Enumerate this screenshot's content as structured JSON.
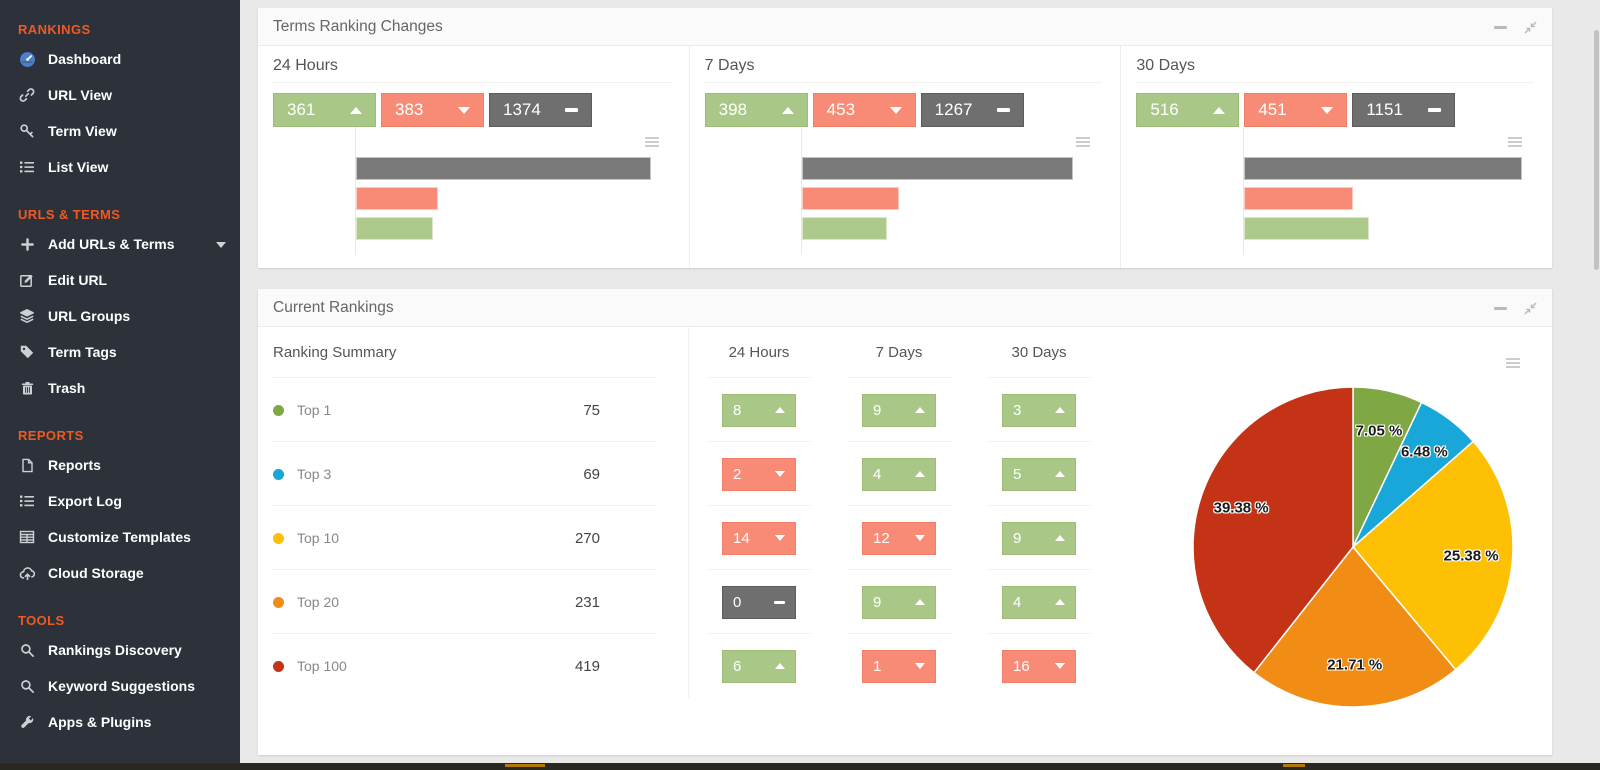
{
  "sidebar": {
    "sections": [
      {
        "label": "RANKINGS",
        "items": [
          {
            "icon": "dashboard-icon",
            "label": "Dashboard"
          },
          {
            "icon": "link-icon",
            "label": "URL View"
          },
          {
            "icon": "key-icon",
            "label": "Term View"
          },
          {
            "icon": "list-icon",
            "label": "List View"
          }
        ]
      },
      {
        "label": "URLS & TERMS",
        "items": [
          {
            "icon": "plus-icon",
            "label": "Add URLs & Terms",
            "has_caret": true
          },
          {
            "icon": "edit-icon",
            "label": "Edit URL"
          },
          {
            "icon": "layers-icon",
            "label": "URL Groups"
          },
          {
            "icon": "tag-icon",
            "label": "Term Tags"
          },
          {
            "icon": "trash-icon",
            "label": "Trash"
          }
        ]
      },
      {
        "label": "REPORTS",
        "items": [
          {
            "icon": "file-icon",
            "label": "Reports"
          },
          {
            "icon": "list-icon",
            "label": "Export Log"
          },
          {
            "icon": "table-icon",
            "label": "Customize Templates"
          },
          {
            "icon": "cloud-upload-icon",
            "label": "Cloud Storage"
          }
        ]
      },
      {
        "label": "TOOLS",
        "items": [
          {
            "icon": "search-icon",
            "label": "Rankings Discovery"
          },
          {
            "icon": "search-icon",
            "label": "Keyword Suggestions"
          },
          {
            "icon": "wrench-icon",
            "label": "Apps & Plugins"
          }
        ]
      }
    ]
  },
  "panels": {
    "terms_ranking_changes": {
      "title": "Terms Ranking Changes",
      "columns": [
        {
          "label": "24 Hours",
          "up": "361",
          "down": "383",
          "same": "1374"
        },
        {
          "label": "7 Days",
          "up": "398",
          "down": "453",
          "same": "1267"
        },
        {
          "label": "30 Days",
          "up": "516",
          "down": "451",
          "same": "1151"
        }
      ]
    },
    "current_rankings": {
      "title": "Current Rankings",
      "summary_header": "Ranking Summary",
      "columns": [
        "24 Hours",
        "7 Days",
        "30 Days"
      ],
      "rows": [
        {
          "label": "Top 1",
          "count": "75",
          "dot_color": "#7fa844",
          "h24": {
            "value": "8",
            "dir": "up"
          },
          "d7": {
            "value": "9",
            "dir": "up"
          },
          "d30": {
            "value": "3",
            "dir": "up"
          }
        },
        {
          "label": "Top 3",
          "count": "69",
          "dot_color": "#19a6d8",
          "h24": {
            "value": "2",
            "dir": "down"
          },
          "d7": {
            "value": "4",
            "dir": "up"
          },
          "d30": {
            "value": "5",
            "dir": "up"
          }
        },
        {
          "label": "Top 10",
          "count": "270",
          "dot_color": "#fdc005",
          "h24": {
            "value": "14",
            "dir": "down"
          },
          "d7": {
            "value": "12",
            "dir": "down"
          },
          "d30": {
            "value": "9",
            "dir": "up"
          }
        },
        {
          "label": "Top 20",
          "count": "231",
          "dot_color": "#f18c15",
          "h24": {
            "value": "0",
            "dir": "same"
          },
          "d7": {
            "value": "9",
            "dir": "up"
          },
          "d30": {
            "value": "4",
            "dir": "up"
          }
        },
        {
          "label": "Top 100",
          "count": "419",
          "dot_color": "#c43316",
          "h24": {
            "value": "6",
            "dir": "up"
          },
          "d7": {
            "value": "1",
            "dir": "down"
          },
          "d30": {
            "value": "16",
            "dir": "down"
          }
        }
      ]
    }
  },
  "colors": {
    "badge_up": "#a9c887",
    "badge_down": "#f78b76",
    "badge_same": "#6f6f6f",
    "sidebar_bg": "#2c313a",
    "section_header": "#f05a22"
  },
  "chart_data": [
    {
      "type": "bar",
      "title": "Terms Ranking Changes — 24 Hours",
      "orientation": "horizontal",
      "categories": [
        "No change",
        "Moved down",
        "Moved up"
      ],
      "values": [
        1374,
        383,
        361
      ],
      "colors": [
        "#7a7a7a",
        "#f78b76",
        "#aec98c"
      ],
      "xlim": [
        0,
        1374
      ],
      "grid": false,
      "legend": "none"
    },
    {
      "type": "bar",
      "title": "Terms Ranking Changes — 7 Days",
      "orientation": "horizontal",
      "categories": [
        "No change",
        "Moved down",
        "Moved up"
      ],
      "values": [
        1267,
        453,
        398
      ],
      "colors": [
        "#7a7a7a",
        "#f78b76",
        "#aec98c"
      ],
      "xlim": [
        0,
        1267
      ],
      "grid": false,
      "legend": "none"
    },
    {
      "type": "bar",
      "title": "Terms Ranking Changes — 30 Days",
      "orientation": "horizontal",
      "categories": [
        "No change",
        "Moved down",
        "Moved up"
      ],
      "values": [
        1151,
        451,
        516
      ],
      "colors": [
        "#7a7a7a",
        "#f78b76",
        "#aec98c"
      ],
      "xlim": [
        0,
        1151
      ],
      "grid": false,
      "legend": "none"
    },
    {
      "type": "pie",
      "title": "Current Rankings distribution",
      "labels": [
        "Top 1",
        "Top 3",
        "Top 10",
        "Top 20",
        "Top 100"
      ],
      "values": [
        7.05,
        6.48,
        25.38,
        21.71,
        39.38
      ],
      "value_labels": [
        "7.05 %",
        "6.48 %",
        "25.38 %",
        "21.71 %",
        "39.38 %"
      ],
      "colors": [
        "#7fa844",
        "#19a6d8",
        "#fdc005",
        "#f18c15",
        "#c43316"
      ],
      "start_angle_deg": 0,
      "direction": "clockwise",
      "legend": "none"
    }
  ]
}
